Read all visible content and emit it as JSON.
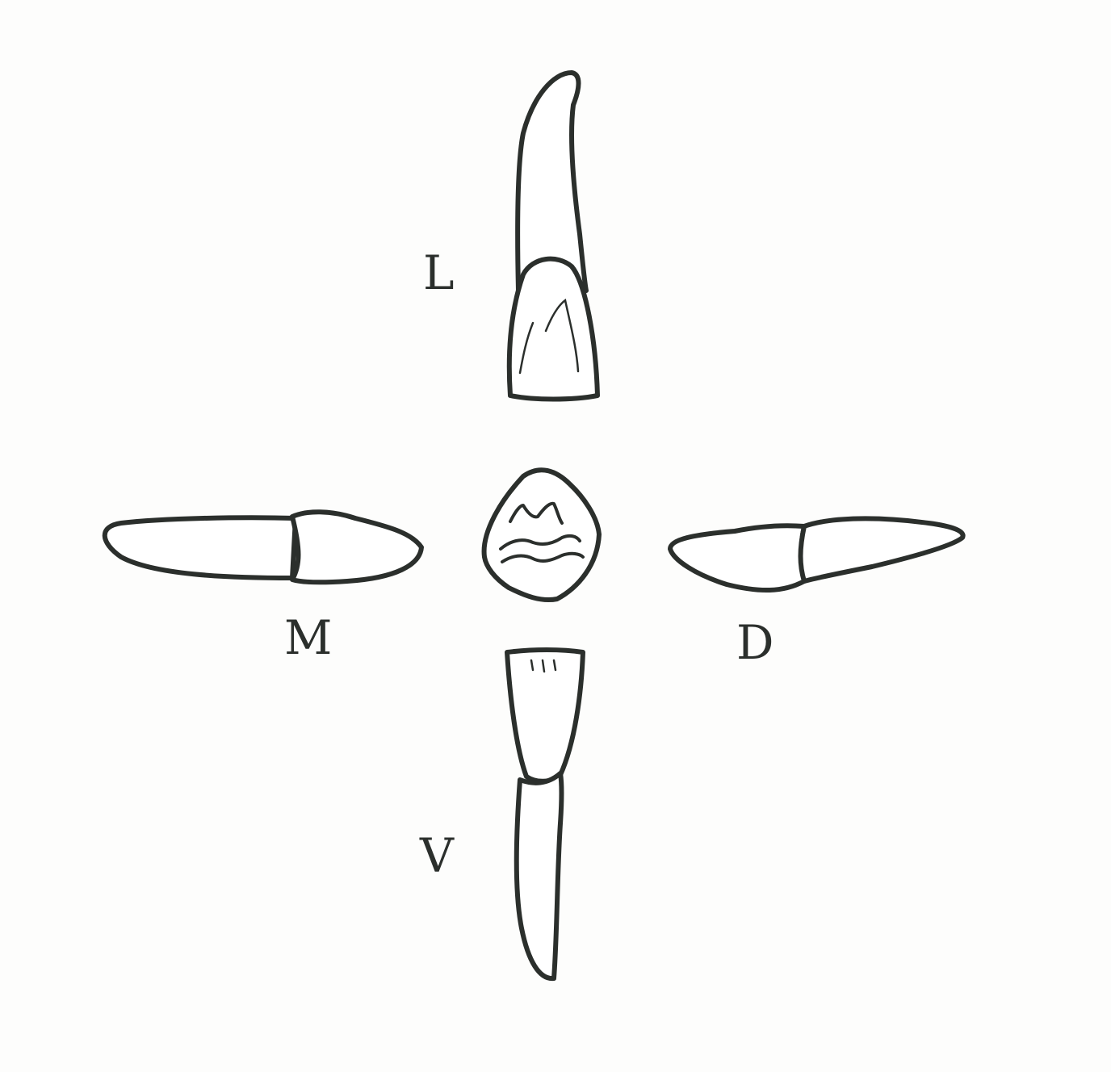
{
  "labels": {
    "lingual": "L",
    "mesial": "M",
    "distal": "D",
    "vestibular": "V"
  },
  "colors": {
    "ink": "#2b2f2c",
    "paper": "#fdfdfc"
  }
}
